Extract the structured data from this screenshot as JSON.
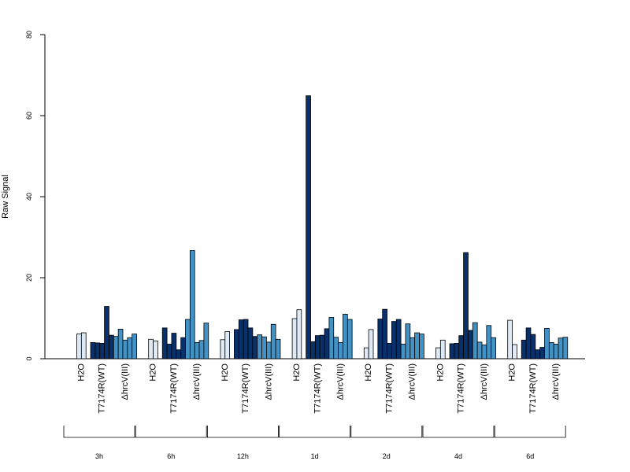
{
  "chart_data": {
    "type": "bar",
    "title": "",
    "ylabel": "Raw Signal",
    "xlabel": "",
    "ylim": [
      0,
      80
    ],
    "yticks": [
      0,
      20,
      40,
      60,
      80
    ],
    "grid": false,
    "legend": "none",
    "time_points": [
      "3h",
      "6h",
      "12h",
      "1d",
      "2d",
      "4d",
      "6d"
    ],
    "group_labels": [
      "H2O",
      "T7174R(WT)",
      "ΔhrcV(III)"
    ],
    "colors": {
      "H2O": "#deebf7",
      "T7174R(WT)": "#08306b",
      "ΔhrcV(III)": "#4292c6",
      "bar_border": "#000000"
    },
    "series": [
      {
        "time": "3h",
        "groups": [
          {
            "name": "H2O",
            "values": [
              6.1,
              6.4
            ]
          },
          {
            "name": "T7174R(WT)",
            "values": [
              4.0,
              3.9,
              3.8,
              12.9,
              5.8
            ]
          },
          {
            "name": "ΔhrcV(III)",
            "values": [
              5.5,
              7.3,
              4.6,
              5.2,
              6.1
            ]
          }
        ]
      },
      {
        "time": "6h",
        "groups": [
          {
            "name": "H2O",
            "values": [
              4.8,
              4.4
            ]
          },
          {
            "name": "T7174R(WT)",
            "values": [
              7.6,
              3.6,
              6.3,
              2.2,
              5.2
            ]
          },
          {
            "name": "ΔhrcV(III)",
            "values": [
              9.7,
              26.7,
              4.0,
              4.5,
              8.8
            ]
          }
        ]
      },
      {
        "time": "12h",
        "groups": [
          {
            "name": "H2O",
            "values": [
              4.7,
              6.7
            ]
          },
          {
            "name": "T7174R(WT)",
            "values": [
              7.2,
              9.6,
              9.7,
              7.6,
              5.5
            ]
          },
          {
            "name": "ΔhrcV(III)",
            "values": [
              5.9,
              5.4,
              4.1,
              8.5,
              4.8
            ]
          }
        ]
      },
      {
        "time": "1d",
        "groups": [
          {
            "name": "H2O",
            "values": [
              9.9,
              12.1
            ]
          },
          {
            "name": "T7174R(WT)",
            "values": [
              64.9,
              4.2,
              5.7,
              5.8,
              7.4
            ]
          },
          {
            "name": "ΔhrcV(III)",
            "values": [
              10.2,
              5.3,
              4.0,
              11.0,
              9.7
            ]
          }
        ]
      },
      {
        "time": "2d",
        "groups": [
          {
            "name": "H2O",
            "values": [
              2.7,
              7.2
            ]
          },
          {
            "name": "T7174R(WT)",
            "values": [
              9.8,
              12.2,
              3.8,
              9.2,
              9.7
            ]
          },
          {
            "name": "ΔhrcV(III)",
            "values": [
              3.6,
              8.6,
              5.2,
              6.4,
              6.1
            ]
          }
        ]
      },
      {
        "time": "4d",
        "groups": [
          {
            "name": "H2O",
            "values": [
              2.7,
              4.6
            ]
          },
          {
            "name": "T7174R(WT)",
            "values": [
              3.7,
              3.8,
              5.7,
              26.2,
              7.0
            ]
          },
          {
            "name": "ΔhrcV(III)",
            "values": [
              8.9,
              4.1,
              3.4,
              8.2,
              5.2
            ]
          }
        ]
      },
      {
        "time": "6d",
        "groups": [
          {
            "name": "H2O",
            "values": [
              9.5,
              3.5
            ]
          },
          {
            "name": "T7174R(WT)",
            "values": [
              4.6,
              7.6,
              6.0,
              2.2,
              2.8
            ]
          },
          {
            "name": "ΔhrcV(III)",
            "values": [
              7.5,
              4.0,
              3.6,
              5.1,
              5.3
            ]
          }
        ]
      }
    ]
  }
}
